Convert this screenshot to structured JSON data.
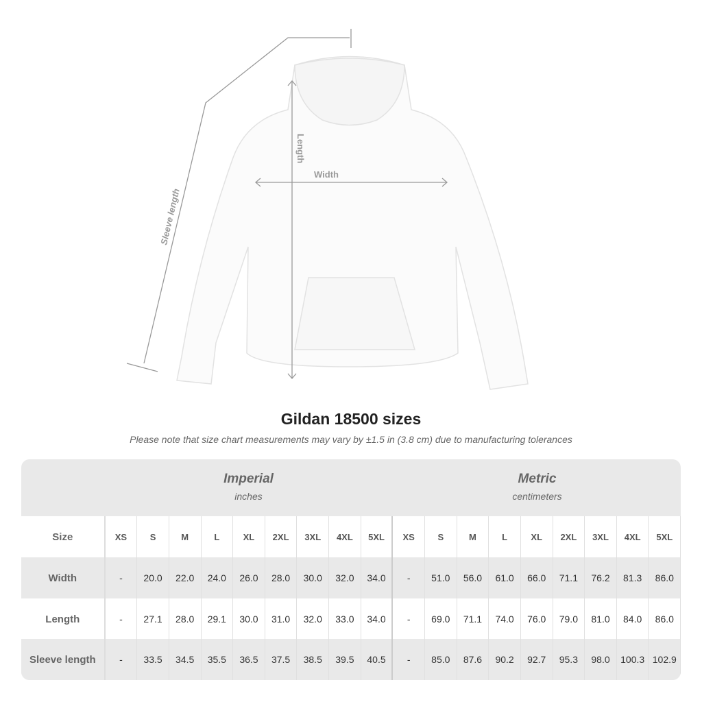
{
  "illustration": {
    "labels": {
      "length": "Length",
      "width": "Width",
      "sleeve": "Sleeve length"
    }
  },
  "title": "Gildan 18500 sizes",
  "note": "Please note that size chart measurements may vary by ±1.5 in (3.8 cm) due to manufacturing tolerances",
  "table": {
    "imperial": {
      "title": "Imperial",
      "unit": "inches"
    },
    "metric": {
      "title": "Metric",
      "unit": "centimeters"
    },
    "size_label": "Size",
    "sizes": [
      "XS",
      "S",
      "M",
      "L",
      "XL",
      "2XL",
      "3XL",
      "4XL",
      "5XL"
    ],
    "rows": [
      {
        "label": "Width",
        "imperial": [
          "-",
          "20.0",
          "22.0",
          "24.0",
          "26.0",
          "28.0",
          "30.0",
          "32.0",
          "34.0"
        ],
        "metric": [
          "-",
          "51.0",
          "56.0",
          "61.0",
          "66.0",
          "71.1",
          "76.2",
          "81.3",
          "86.0"
        ]
      },
      {
        "label": "Length",
        "imperial": [
          "-",
          "27.1",
          "28.0",
          "29.1",
          "30.0",
          "31.0",
          "32.0",
          "33.0",
          "34.0"
        ],
        "metric": [
          "-",
          "69.0",
          "71.1",
          "74.0",
          "76.0",
          "79.0",
          "81.0",
          "84.0",
          "86.0"
        ]
      },
      {
        "label": "Sleeve length",
        "imperial": [
          "-",
          "33.5",
          "34.5",
          "35.5",
          "36.5",
          "37.5",
          "38.5",
          "39.5",
          "40.5"
        ],
        "metric": [
          "-",
          "85.0",
          "87.6",
          "90.2",
          "92.7",
          "95.3",
          "98.0",
          "100.3",
          "102.9"
        ]
      }
    ]
  }
}
